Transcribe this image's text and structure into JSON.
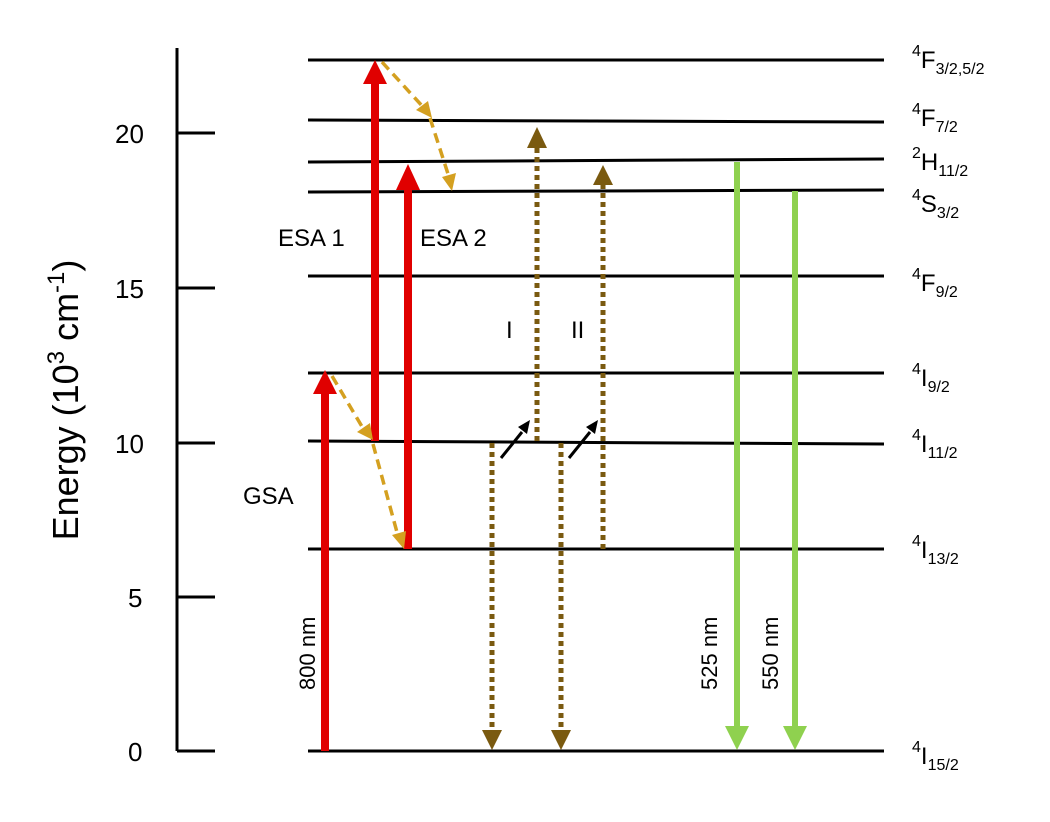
{
  "axis": {
    "title": "Energy (10",
    "title_sup": "3",
    "title_mid": " cm",
    "title_sup2": "-1",
    "title_end": ")",
    "ticks": [
      "0",
      "5",
      "10",
      "15",
      "20"
    ]
  },
  "levels": [
    {
      "base": "I",
      "sup": "4",
      "sub": "15/2"
    },
    {
      "base": "I",
      "sup": "4",
      "sub": "13/2"
    },
    {
      "base": "I",
      "sup": "4",
      "sub": "11/2"
    },
    {
      "base": "I",
      "sup": "4",
      "sub": "9/2"
    },
    {
      "base": "F",
      "sup": "4",
      "sub": "9/2"
    },
    {
      "base": "S",
      "sup": "4",
      "sub": "3/2"
    },
    {
      "base": "H",
      "sup": "2",
      "sub": "11/2"
    },
    {
      "base": "F",
      "sup": "4",
      "sub": "7/2"
    },
    {
      "base": "F",
      "sup": "4",
      "sub": "3/2,5/2"
    }
  ],
  "labels": {
    "gsa": "GSA",
    "esa1": "ESA 1",
    "esa2": "ESA 2",
    "process1": "I",
    "process2": "II",
    "excitation_wavelength": "800 nm",
    "emission1": "525 nm",
    "emission2": "550 nm"
  },
  "colors": {
    "excitation": "#e00000",
    "relaxation": "#d4a020",
    "energy_transfer": "#7a5a10",
    "emission": "#8fd14f",
    "axis": "#000000"
  }
}
